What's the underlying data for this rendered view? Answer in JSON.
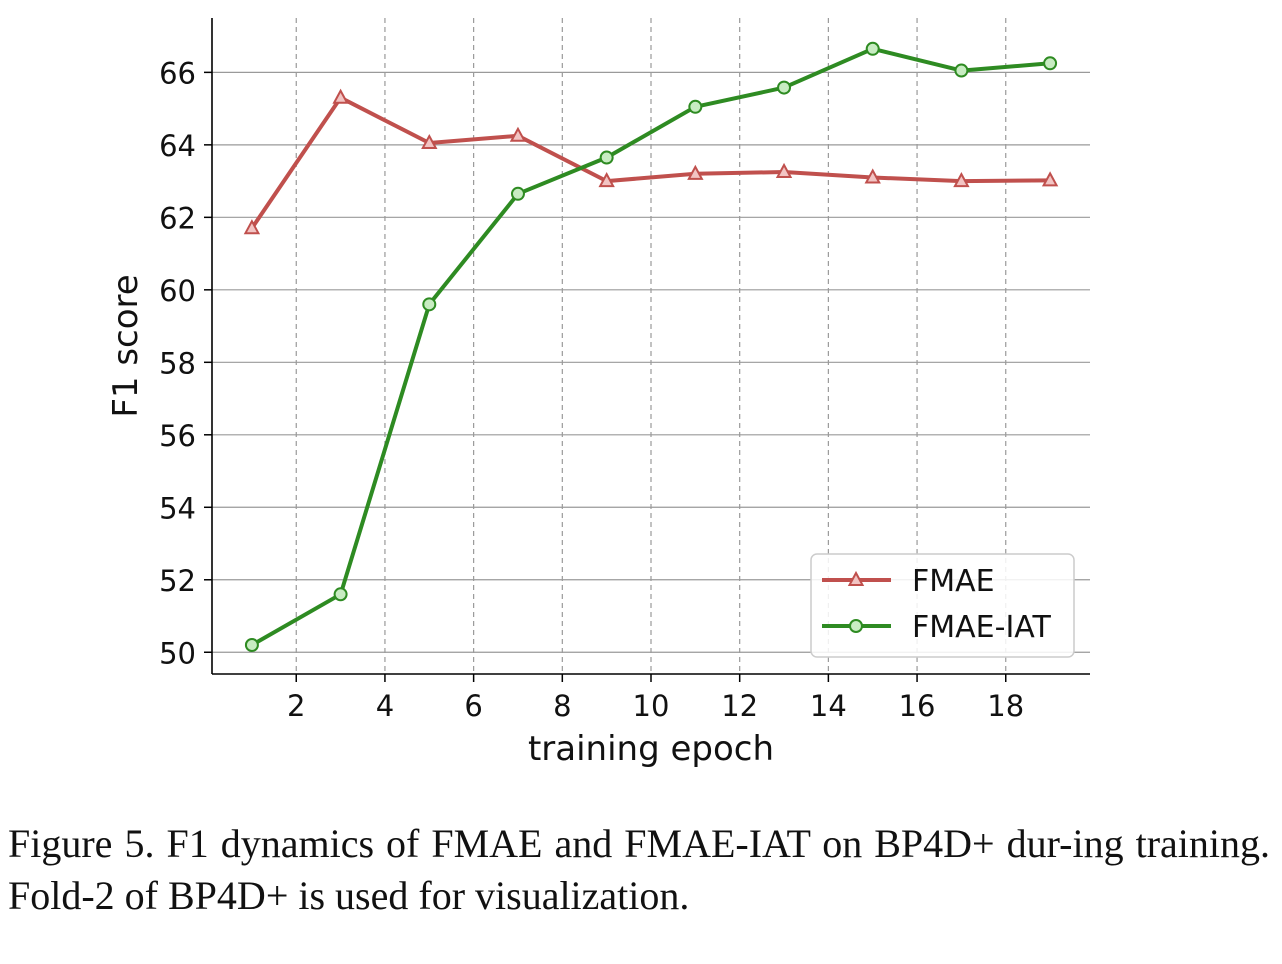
{
  "chart_data": {
    "type": "line",
    "xlabel": "training epoch",
    "ylabel": "F1 score",
    "xlim": [
      0.1,
      19.9
    ],
    "ylim": [
      49.4,
      67.5
    ],
    "x_ticks": [
      2,
      4,
      6,
      8,
      10,
      12,
      14,
      16,
      18
    ],
    "y_ticks": [
      50,
      52,
      54,
      56,
      58,
      60,
      62,
      64,
      66
    ],
    "grid": {
      "x": "dashed",
      "y": "solid"
    },
    "legend_position": "lower-right",
    "x": [
      1,
      3,
      5,
      7,
      9,
      11,
      13,
      15,
      17,
      19
    ],
    "series": [
      {
        "name": "FMAE",
        "marker": "triangle",
        "color": "#c0504d",
        "values": [
          61.7,
          65.3,
          64.05,
          64.25,
          63.0,
          63.2,
          63.25,
          63.1,
          63.0,
          63.02
        ]
      },
      {
        "name": "FMAE-IAT",
        "marker": "circle",
        "color": "#2e8b22",
        "values": [
          50.2,
          51.6,
          59.6,
          62.65,
          63.65,
          65.05,
          65.58,
          66.65,
          66.05,
          66.25
        ]
      }
    ]
  },
  "caption": "Figure 5. F1 dynamics of FMAE and FMAE-IAT on BP4D+ dur-ing training. Fold-2 of BP4D+ is used for visualization."
}
